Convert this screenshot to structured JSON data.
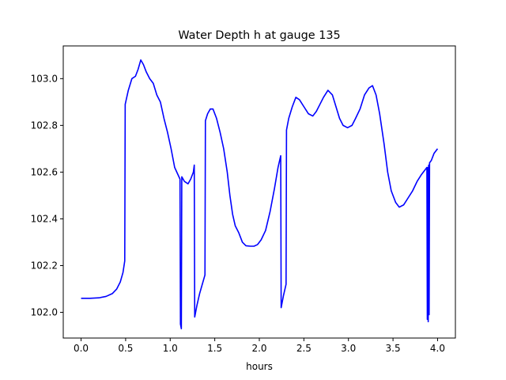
{
  "chart_data": {
    "type": "line",
    "title": "Water Depth h at gauge 135",
    "xlabel": "hours",
    "ylabel": "",
    "xlim": [
      -0.2,
      4.2
    ],
    "ylim": [
      101.89,
      103.14
    ],
    "x_ticks": [
      0.0,
      0.5,
      1.0,
      1.5,
      2.0,
      2.5,
      3.0,
      3.5,
      4.0
    ],
    "x_tick_labels": [
      "0.0",
      "0.5",
      "1.0",
      "1.5",
      "2.0",
      "2.5",
      "3.0",
      "3.5",
      "4.0"
    ],
    "y_ticks": [
      102.0,
      102.2,
      102.4,
      102.6,
      102.8,
      103.0
    ],
    "y_tick_labels": [
      "102.0",
      "102.2",
      "102.4",
      "102.6",
      "102.8",
      "103.0"
    ],
    "grid": false,
    "legend": "none",
    "series": [
      {
        "color": "#0000ff",
        "points": [
          [
            0.0,
            102.06
          ],
          [
            0.1,
            102.06
          ],
          [
            0.2,
            102.062
          ],
          [
            0.28,
            102.068
          ],
          [
            0.35,
            102.08
          ],
          [
            0.4,
            102.1
          ],
          [
            0.44,
            102.13
          ],
          [
            0.47,
            102.17
          ],
          [
            0.49,
            102.22
          ],
          [
            0.495,
            102.89
          ],
          [
            0.53,
            102.95
          ],
          [
            0.57,
            103.0
          ],
          [
            0.61,
            103.01
          ],
          [
            0.64,
            103.04
          ],
          [
            0.67,
            103.08
          ],
          [
            0.7,
            103.06
          ],
          [
            0.73,
            103.03
          ],
          [
            0.77,
            103.0
          ],
          [
            0.81,
            102.98
          ],
          [
            0.85,
            102.93
          ],
          [
            0.89,
            102.9
          ],
          [
            0.93,
            102.83
          ],
          [
            0.97,
            102.77
          ],
          [
            1.01,
            102.7
          ],
          [
            1.05,
            102.62
          ],
          [
            1.11,
            102.57
          ],
          [
            1.115,
            101.95
          ],
          [
            1.125,
            101.93
          ],
          [
            1.13,
            102.58
          ],
          [
            1.16,
            102.56
          ],
          [
            1.2,
            102.55
          ],
          [
            1.23,
            102.57
          ],
          [
            1.26,
            102.6
          ],
          [
            1.27,
            102.63
          ],
          [
            1.275,
            101.98
          ],
          [
            1.3,
            102.03
          ],
          [
            1.33,
            102.08
          ],
          [
            1.36,
            102.12
          ],
          [
            1.39,
            102.16
          ],
          [
            1.395,
            102.82
          ],
          [
            1.42,
            102.85
          ],
          [
            1.45,
            102.87
          ],
          [
            1.48,
            102.87
          ],
          [
            1.52,
            102.83
          ],
          [
            1.56,
            102.77
          ],
          [
            1.6,
            102.7
          ],
          [
            1.64,
            102.6
          ],
          [
            1.67,
            102.5
          ],
          [
            1.7,
            102.42
          ],
          [
            1.73,
            102.37
          ],
          [
            1.77,
            102.34
          ],
          [
            1.81,
            102.3
          ],
          [
            1.85,
            102.285
          ],
          [
            1.9,
            102.283
          ],
          [
            1.94,
            102.283
          ],
          [
            1.98,
            102.29
          ],
          [
            2.02,
            102.31
          ],
          [
            2.07,
            102.35
          ],
          [
            2.12,
            102.43
          ],
          [
            2.17,
            102.53
          ],
          [
            2.21,
            102.62
          ],
          [
            2.24,
            102.67
          ],
          [
            2.245,
            102.02
          ],
          [
            2.27,
            102.07
          ],
          [
            2.3,
            102.12
          ],
          [
            2.305,
            102.78
          ],
          [
            2.33,
            102.83
          ],
          [
            2.37,
            102.88
          ],
          [
            2.41,
            102.92
          ],
          [
            2.45,
            102.91
          ],
          [
            2.5,
            102.88
          ],
          [
            2.55,
            102.85
          ],
          [
            2.6,
            102.84
          ],
          [
            2.64,
            102.86
          ],
          [
            2.68,
            102.89
          ],
          [
            2.72,
            102.92
          ],
          [
            2.77,
            102.95
          ],
          [
            2.82,
            102.93
          ],
          [
            2.86,
            102.88
          ],
          [
            2.9,
            102.83
          ],
          [
            2.94,
            102.8
          ],
          [
            2.99,
            102.79
          ],
          [
            3.04,
            102.8
          ],
          [
            3.08,
            102.83
          ],
          [
            3.13,
            102.87
          ],
          [
            3.18,
            102.93
          ],
          [
            3.23,
            102.96
          ],
          [
            3.27,
            102.97
          ],
          [
            3.31,
            102.93
          ],
          [
            3.35,
            102.85
          ],
          [
            3.4,
            102.72
          ],
          [
            3.44,
            102.6
          ],
          [
            3.48,
            102.52
          ],
          [
            3.53,
            102.47
          ],
          [
            3.57,
            102.45
          ],
          [
            3.62,
            102.46
          ],
          [
            3.67,
            102.49
          ],
          [
            3.72,
            102.52
          ],
          [
            3.77,
            102.56
          ],
          [
            3.82,
            102.59
          ],
          [
            3.86,
            102.61
          ],
          [
            3.88,
            102.62
          ],
          [
            3.885,
            101.97
          ],
          [
            3.89,
            102.62
          ],
          [
            3.895,
            101.96
          ],
          [
            3.9,
            102.63
          ],
          [
            3.905,
            101.99
          ],
          [
            3.91,
            102.64
          ],
          [
            3.93,
            102.65
          ],
          [
            3.96,
            102.68
          ],
          [
            4.0,
            102.7
          ]
        ]
      }
    ]
  }
}
